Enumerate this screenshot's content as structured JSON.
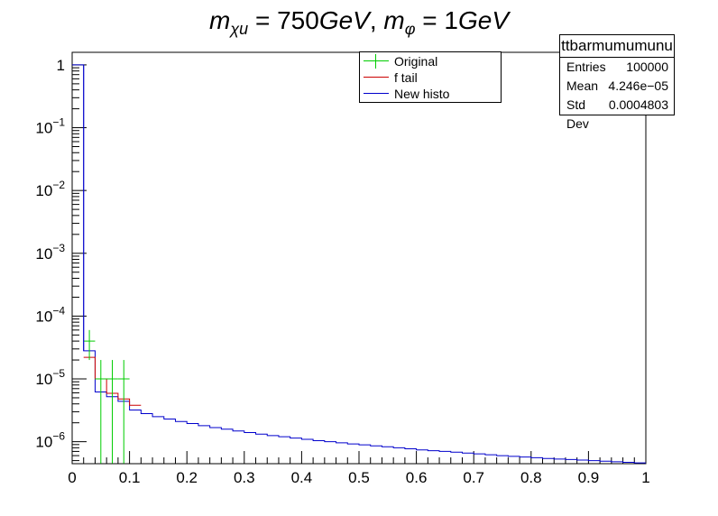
{
  "chart_data": {
    "type": "histogram",
    "title": "m_χu = 750 GeV, m_φ = 1 GeV",
    "title_parts": {
      "m1": "m",
      "s1": "χu",
      "eq1": " = 750",
      "u1": "GeV",
      "comma": ", ",
      "m2": "m",
      "s2": "φ",
      "eq2": " = 1",
      "u2": "GeV"
    },
    "xlim": [
      0,
      1
    ],
    "ylim_log10": [
      -6.35,
      0.2
    ],
    "y_scale": "log",
    "x_ticks": [
      "0",
      "0.1",
      "0.2",
      "0.3",
      "0.4",
      "0.5",
      "0.6",
      "0.7",
      "0.8",
      "0.9",
      "1"
    ],
    "y_ticks": [
      {
        "exp": 0,
        "label": "1"
      },
      {
        "exp": -1,
        "label": "10",
        "sup": "−1"
      },
      {
        "exp": -2,
        "label": "10",
        "sup": "−2"
      },
      {
        "exp": -3,
        "label": "10",
        "sup": "−3"
      },
      {
        "exp": -4,
        "label": "10",
        "sup": "−4"
      },
      {
        "exp": -5,
        "label": "10",
        "sup": "−5"
      },
      {
        "exp": -6,
        "label": "10",
        "sup": "−6"
      }
    ],
    "bin_width": 0.02,
    "series": [
      {
        "name": "New histo",
        "color": "#0000cc",
        "bins_start": 0.0,
        "values": [
          1.0,
          2.8e-05,
          6.2e-06,
          5.2e-06,
          4.4e-06,
          3.2e-06,
          2.8e-06,
          2.5e-06,
          2.3e-06,
          2.1e-06,
          1.95e-06,
          1.8e-06,
          1.68e-06,
          1.58e-06,
          1.48e-06,
          1.4e-06,
          1.32e-06,
          1.25e-06,
          1.2e-06,
          1.14e-06,
          1.09e-06,
          1.04e-06,
          1e-06,
          9.6e-07,
          9.2e-07,
          8.9e-07,
          8.6e-07,
          8.3e-07,
          8e-07,
          7.7e-07,
          7.4e-07,
          7.2e-07,
          7e-07,
          6.8e-07,
          6.6e-07,
          6.4e-07,
          6.2e-07,
          6e-07,
          5.85e-07,
          5.7e-07,
          5.55e-07,
          5.4e-07,
          5.3e-07,
          5.2e-07,
          5.1e-07,
          5e-07,
          4.9e-07,
          4.8e-07,
          4.7e-07,
          4.6e-07
        ]
      },
      {
        "name": "f tail",
        "color": "#cc0000",
        "bins_start": 0.02,
        "values": [
          2.2e-05,
          1e-05,
          5.9e-06,
          4.8e-06,
          3.8e-06
        ]
      },
      {
        "name": "Original",
        "color": "#00cc00",
        "type": "errorbar",
        "points": [
          {
            "x": 0.03,
            "y": 4e-05,
            "ylo": 2e-05,
            "yhi": 6e-05
          },
          {
            "x": 0.05,
            "y": 1e-05,
            "ylo": 4.5e-07,
            "yhi": 2e-05
          },
          {
            "x": 0.07,
            "y": 1e-05,
            "ylo": 4.5e-07,
            "yhi": 2e-05
          },
          {
            "x": 0.09,
            "y": 1e-05,
            "ylo": 4.5e-07,
            "yhi": 2e-05
          }
        ]
      }
    ]
  },
  "legend": {
    "entries": [
      {
        "label": "Original",
        "color": "#00cc00"
      },
      {
        "label": "f tail",
        "color": "#cc0000"
      },
      {
        "label": "New histo",
        "color": "#0000cc"
      }
    ]
  },
  "stats": {
    "name": "ttbarmumumunu",
    "entries_label": "Entries",
    "entries_value": "100000",
    "mean_label": "Mean",
    "mean_value": "4.246e−05",
    "std_label": "Std Dev",
    "std_value": "0.0004803"
  }
}
